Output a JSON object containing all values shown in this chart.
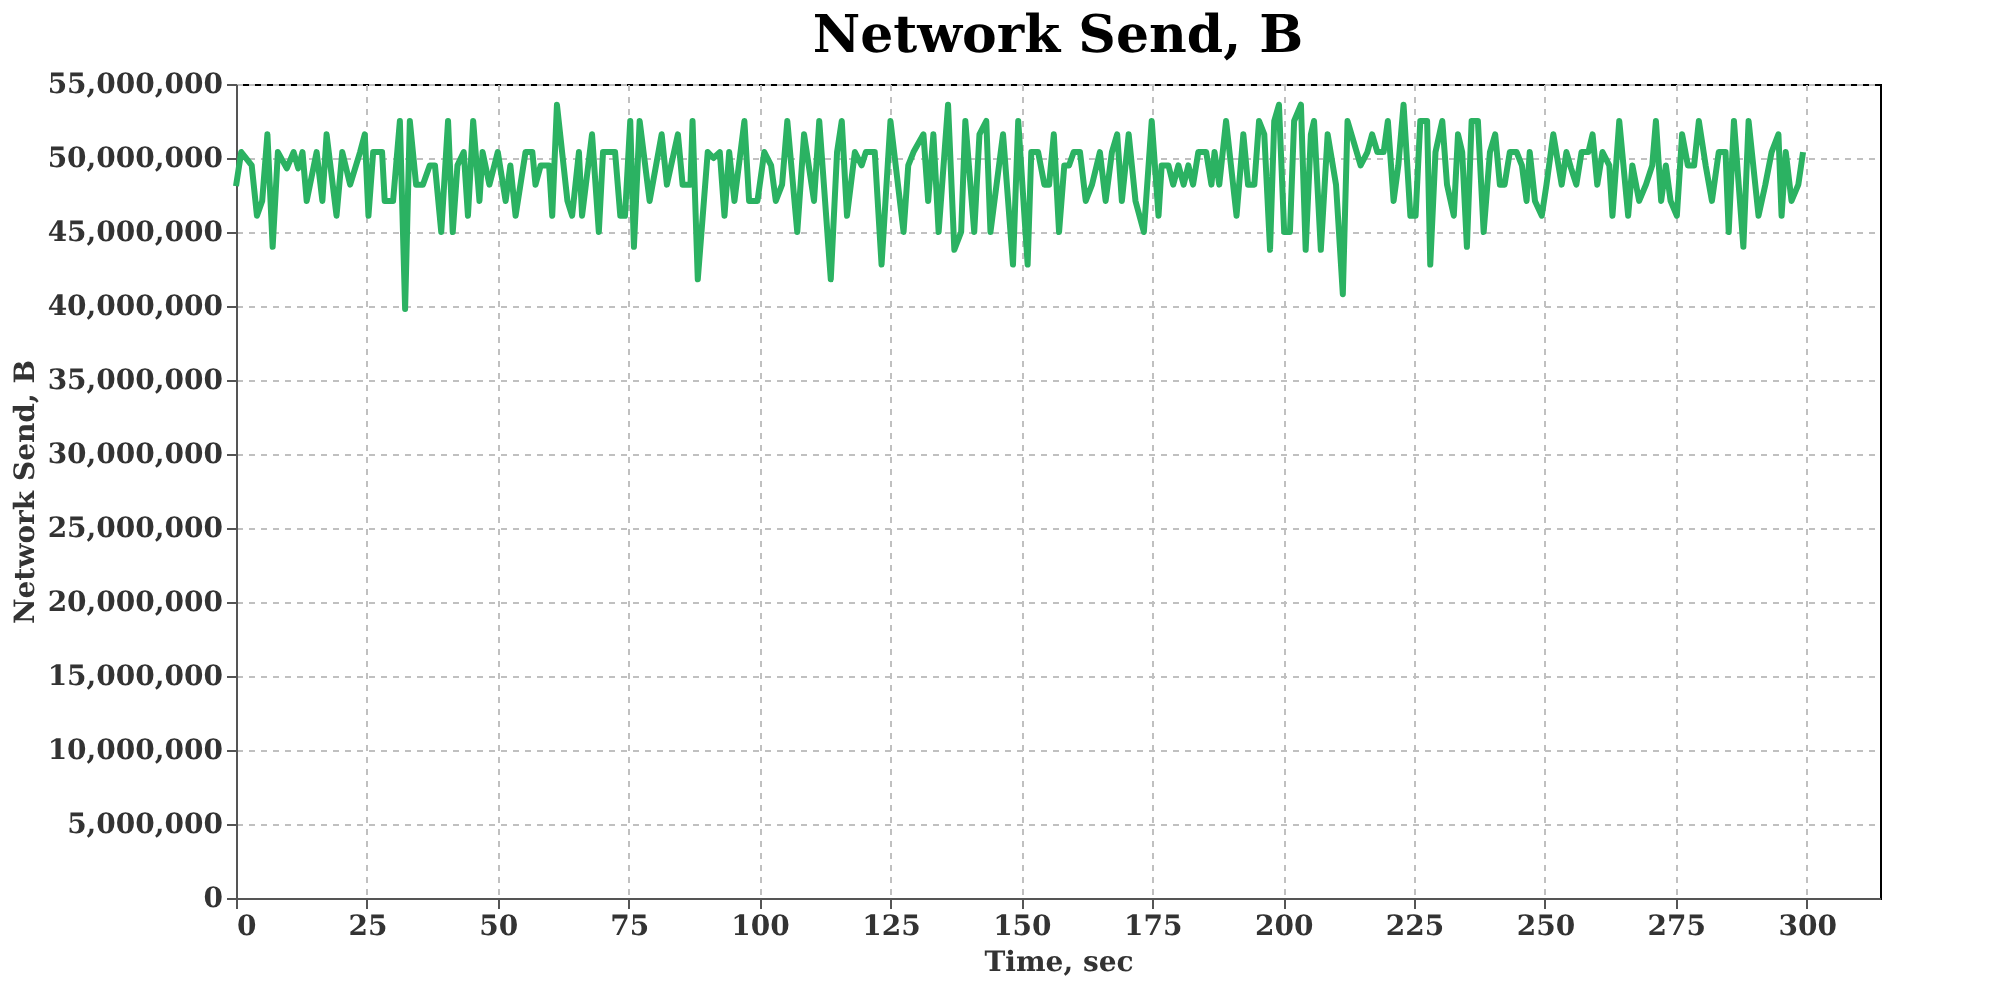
{
  "chart_data": {
    "type": "line",
    "title": "Network Send, B",
    "xlabel": "Time, sec",
    "ylabel": "Network Send, B",
    "xlim": [
      0,
      314
    ],
    "xticks": [
      0,
      25,
      50,
      75,
      100,
      125,
      150,
      175,
      200,
      225,
      250,
      275,
      300
    ],
    "ylim": [
      0,
      55000000
    ],
    "yticks": [
      0,
      {
        "value": 5000000,
        "label": "5,000,000"
      },
      {
        "value": 10000000,
        "label": "10,000,000"
      },
      {
        "value": 15000000,
        "label": "15,000,000"
      },
      {
        "value": 20000000,
        "label": "20,000,000"
      },
      {
        "value": 25000000,
        "label": "25,000,000"
      },
      {
        "value": 30000000,
        "label": "30,000,000"
      },
      {
        "value": 35000000,
        "label": "35,000,000"
      },
      {
        "value": 40000000,
        "label": "40,000,000"
      },
      {
        "value": 45000000,
        "label": "45,000,000"
      },
      {
        "value": 50000000,
        "label": "50,000,000"
      },
      {
        "value": 55000000,
        "label": "55,000,000"
      }
    ],
    "grid": true,
    "line_style": "solid",
    "marker": "none",
    "x": [
      0,
      1,
      3,
      4,
      5,
      6,
      7,
      8,
      9.7,
      11.0,
      11.9,
      12.7,
      13.5,
      15.4,
      16.5,
      17.3,
      19.2,
      20.3,
      21.8,
      23.7,
      24.6,
      25.3,
      26.2,
      27.9,
      28.4,
      30.0,
      31.3,
      32.3,
      33.2,
      34.4,
      35.7,
      37.0,
      38.0,
      39.2,
      40.5,
      41.4,
      42.3,
      43.5,
      44.3,
      45.3,
      46.5,
      47.1,
      48.4,
      50.0,
      51.5,
      52.4,
      53.4,
      55.3,
      56.6,
      57.2,
      58.2,
      59.8,
      60.4,
      61.3,
      63.3,
      64.2,
      65.5,
      66.1,
      68.0,
      69.3,
      70.1,
      72.4,
      73.4,
      74.3,
      75.3,
      76.0,
      77.1,
      79.0,
      81.3,
      82.3,
      84.4,
      85.3,
      86.8,
      87.2,
      88.2,
      90.1,
      91.2,
      92.4,
      93.3,
      94.2,
      95.2,
      97.1,
      98.0,
      99.6,
      100.9,
      102.2,
      103.1,
      104.3,
      105.3,
      107.2,
      108.5,
      110.4,
      111.4,
      113.6,
      114.8,
      115.7,
      116.7,
      118.2,
      119.5,
      120.3,
      122.0,
      123.3,
      125.0,
      127.5,
      128.4,
      129.4,
      131.3,
      132.2,
      133.2,
      134.2,
      136.0,
      137.2,
      138.5,
      139.3,
      141.0,
      142.0,
      143.3,
      144.1,
      146.5,
      148.4,
      149.4,
      151.2,
      151.9,
      153.2,
      154.4,
      155.3,
      156.2,
      157.2,
      158.2,
      159.1,
      160.0,
      161.2,
      162.3,
      163.5,
      165.0,
      166.1,
      167.3,
      168.3,
      169.2,
      170.5,
      171.8,
      173.4,
      174.9,
      176.2,
      176.8,
      178.1,
      179.0,
      180.0,
      181.0,
      181.9,
      182.8,
      183.8,
      185.3,
      186.3,
      186.9,
      187.8,
      189.1,
      191.1,
      192.4,
      193.3,
      194.5,
      195.4,
      196.4,
      197.5,
      198.3,
      199.2,
      200.2,
      201.3,
      202.1,
      203.4,
      204.3,
      205.3,
      205.9,
      207.2,
      208.5,
      210.1,
      211.4,
      212.3,
      214.8,
      216.1,
      217.0,
      218.0,
      219.2,
      220.0,
      221.1,
      222.0,
      223.0,
      224.3,
      225.3,
      226.2,
      227.5,
      228.1,
      229.1,
      230.4,
      231.3,
      232.6,
      233.4,
      234.2,
      235.1,
      236.0,
      237.2,
      238.3,
      239.5,
      240.5,
      241.4,
      242.3,
      243.3,
      244.6,
      245.6,
      246.5,
      247.1,
      248.1,
      249.4,
      250.3,
      251.6,
      253.2,
      254.1,
      255.0,
      256.0,
      257.0,
      258.3,
      259.1,
      260.0,
      261.0,
      262.3,
      262.9,
      264.2,
      265.9,
      266.7,
      268.0,
      269.3,
      270.5,
      271.2,
      272.2,
      273.1,
      274.0,
      275.2,
      276.2,
      277.3,
      278.5,
      279.4,
      280.7,
      281.9,
      283.2,
      284.5,
      285.1,
      286.1,
      287.9,
      288.9,
      290.8,
      292.1,
      293.3,
      294.6,
      295.2,
      296.0,
      297.1,
      298.4,
      299.3
    ],
    "series": [
      {
        "color": "#2bb262",
        "values": [
          48100000,
          50400000,
          49500000,
          46100000,
          47100000,
          51600000,
          44000000,
          50400000,
          49300000,
          50400000,
          49300000,
          50400000,
          47100000,
          50400000,
          47100000,
          51600000,
          46100000,
          50400000,
          48200000,
          50400000,
          51600000,
          46100000,
          50400000,
          50400000,
          47100000,
          47100000,
          52500000,
          39800000,
          52500000,
          48200000,
          48200000,
          49500000,
          49500000,
          45000000,
          52500000,
          45000000,
          49500000,
          50400000,
          46100000,
          52500000,
          47100000,
          50400000,
          48200000,
          50400000,
          47100000,
          49500000,
          46100000,
          50400000,
          50400000,
          48200000,
          49500000,
          49500000,
          46100000,
          53600000,
          47100000,
          46100000,
          50400000,
          46100000,
          51600000,
          45000000,
          50400000,
          50400000,
          46100000,
          46100000,
          52500000,
          44000000,
          52500000,
          47100000,
          51600000,
          48200000,
          51600000,
          48200000,
          48200000,
          52500000,
          41800000,
          50400000,
          50000000,
          50400000,
          46100000,
          50400000,
          47100000,
          52500000,
          47100000,
          47100000,
          50400000,
          49500000,
          47100000,
          48200000,
          52500000,
          45000000,
          51600000,
          47100000,
          52500000,
          41800000,
          50400000,
          52500000,
          46100000,
          50400000,
          49500000,
          50400000,
          50400000,
          42800000,
          52500000,
          45000000,
          49500000,
          50400000,
          51600000,
          47100000,
          51600000,
          45000000,
          53600000,
          43800000,
          45000000,
          52500000,
          45000000,
          51600000,
          52500000,
          45000000,
          51600000,
          42800000,
          52500000,
          42800000,
          50400000,
          50400000,
          48200000,
          48200000,
          51600000,
          45000000,
          49500000,
          49500000,
          50400000,
          50400000,
          47100000,
          48200000,
          50400000,
          47100000,
          50400000,
          51600000,
          47100000,
          51600000,
          47100000,
          45000000,
          52500000,
          46100000,
          49500000,
          49500000,
          48200000,
          49500000,
          48200000,
          49500000,
          48200000,
          50400000,
          50400000,
          48200000,
          50400000,
          48200000,
          52500000,
          46100000,
          51600000,
          48200000,
          48200000,
          52500000,
          51600000,
          43800000,
          52500000,
          53600000,
          45000000,
          45000000,
          52500000,
          53600000,
          43800000,
          51600000,
          52500000,
          43800000,
          51600000,
          48200000,
          40800000,
          52500000,
          49500000,
          50400000,
          51600000,
          50400000,
          50400000,
          52500000,
          47100000,
          49500000,
          53600000,
          46100000,
          46100000,
          52500000,
          52500000,
          42800000,
          50400000,
          52500000,
          48200000,
          46100000,
          51600000,
          50400000,
          44000000,
          52500000,
          52500000,
          45000000,
          50400000,
          51600000,
          48200000,
          48200000,
          50400000,
          50400000,
          49500000,
          47100000,
          50400000,
          47100000,
          46100000,
          48200000,
          51600000,
          48200000,
          50400000,
          49300000,
          48200000,
          50400000,
          50400000,
          51600000,
          48200000,
          50400000,
          49500000,
          46100000,
          52500000,
          46100000,
          49500000,
          47100000,
          48200000,
          49500000,
          52500000,
          47100000,
          49500000,
          47100000,
          46100000,
          51600000,
          49500000,
          49500000,
          52500000,
          49500000,
          47100000,
          50400000,
          50400000,
          45000000,
          52500000,
          44000000,
          52500000,
          46100000,
          48200000,
          50400000,
          51600000,
          46100000,
          50400000,
          47100000,
          48200000,
          50400000
        ]
      }
    ]
  }
}
